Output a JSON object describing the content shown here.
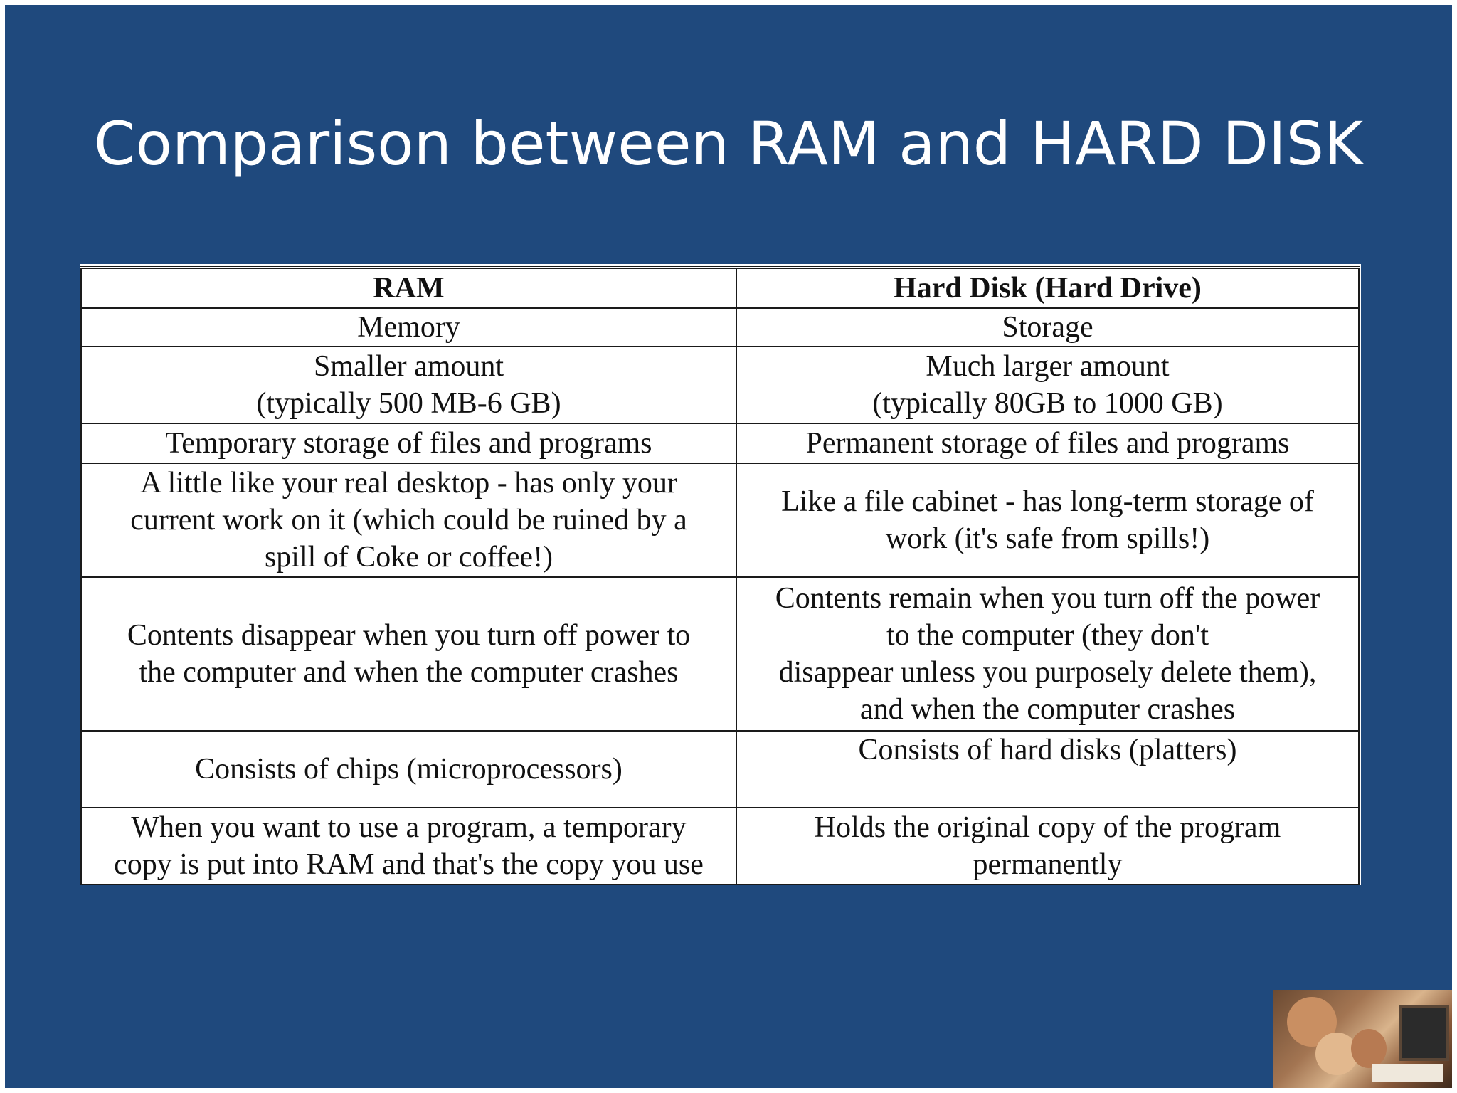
{
  "title": "Comparison between RAM and HARD DISK",
  "table": {
    "headers": [
      "RAM",
      "Hard Disk (Hard Drive)"
    ],
    "rows": [
      {
        "ram": [
          "Memory"
        ],
        "disk": [
          "Storage"
        ]
      },
      {
        "ram": [
          "Smaller amount",
          "(typically 500 MB-6 GB)"
        ],
        "disk": [
          "Much larger amount",
          "(typically 80GB to 1000 GB)"
        ]
      },
      {
        "ram": [
          "Temporary storage of files and programs"
        ],
        "disk": [
          "Permanent storage of files and programs"
        ]
      },
      {
        "ram": [
          "A little like your real desktop - has only your",
          "current work on it (which could be ruined by a",
          "spill of Coke or coffee!)"
        ],
        "disk": [
          "Like a file cabinet - has long-term storage of",
          "work (it's safe from spills!)"
        ]
      },
      {
        "ram": [
          "Contents disappear when you turn off power to",
          "the computer and when the computer crashes"
        ],
        "disk": [
          "Contents remain when you turn off the power",
          "to the computer (they don't",
          "disappear unless you purposely delete them),",
          "and when the computer crashes"
        ]
      },
      {
        "ram": [
          "Consists of chips (microprocessors)"
        ],
        "disk": [
          "Consists of hard disks (platters)"
        ]
      },
      {
        "ram": [
          "When you want to use a program, a temporary",
          "copy is put into RAM and that's the copy you use"
        ],
        "disk": [
          "Holds the original copy of the program",
          "permanently"
        ]
      }
    ]
  },
  "photo_icon": "family-computer-photo"
}
